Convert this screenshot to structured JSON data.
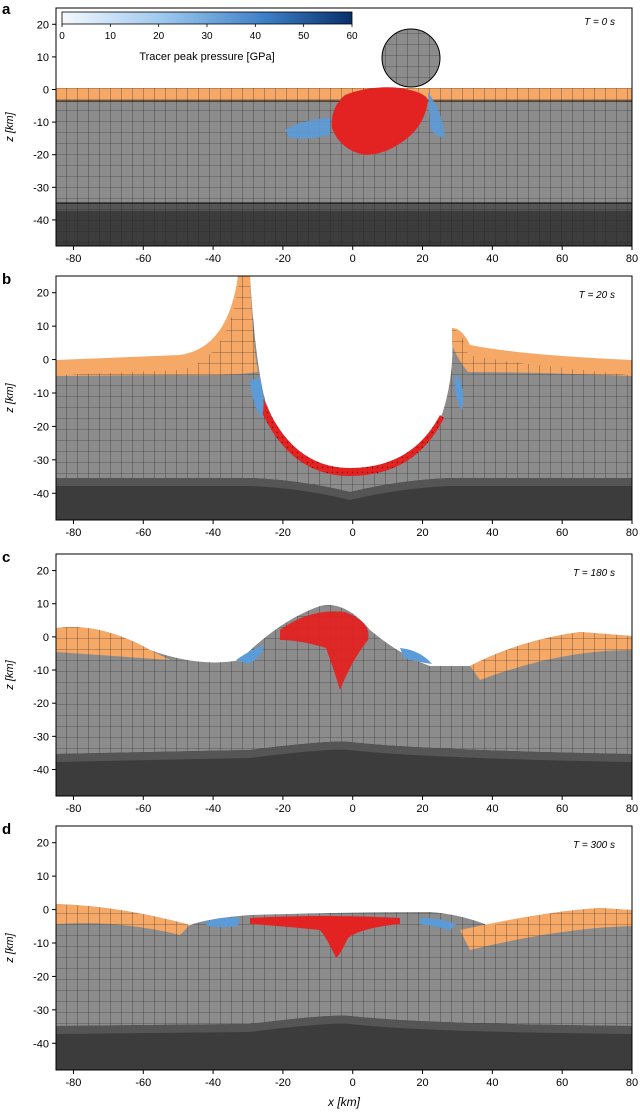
{
  "colors": {
    "sky": "#ffffff",
    "target": "#8c8c8c",
    "mantle": "#3c3c3c",
    "mantle_top": "#4a4a4a",
    "sediment": "#f6a867",
    "melt": "#e32222",
    "pressure_light": "#9cc8ef",
    "pressure_dark": "#1f5fae",
    "grid": "#222222",
    "frame": "#000000"
  },
  "axes": {
    "xlim": [
      -85,
      80
    ],
    "ylim": [
      -48,
      25
    ],
    "xticks": [
      "-80",
      "-60",
      "-40",
      "-20",
      "0",
      "20",
      "40",
      "60",
      "80"
    ],
    "yticks": [
      "20",
      "10",
      "0",
      "-10",
      "-20",
      "-30",
      "-40"
    ],
    "xlabel": "x [km]",
    "ylabel": "z [km]"
  },
  "colorbar": {
    "label": "Tracer peak pressure [GPa]",
    "ticks": [
      "0",
      "10",
      "20",
      "30",
      "40",
      "50",
      "60"
    ],
    "range": [
      0,
      60
    ]
  },
  "panels": [
    {
      "letter": "a",
      "time": "T = 0 s"
    },
    {
      "letter": "b",
      "time": "T = 20 s"
    },
    {
      "letter": "c",
      "time": "T = 180 s"
    },
    {
      "letter": "d",
      "time": "T = 300 s"
    }
  ]
}
